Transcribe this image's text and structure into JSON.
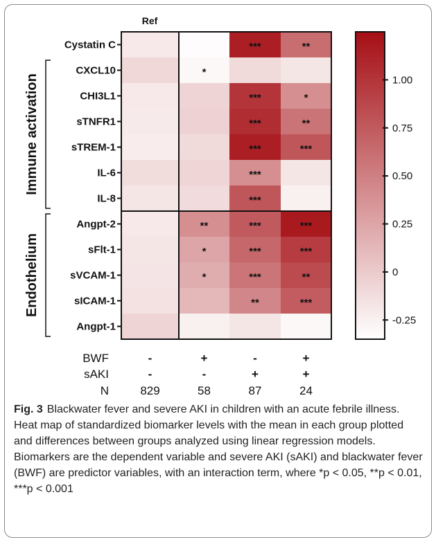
{
  "chart_data": {
    "type": "heatmap",
    "ref_label": "Ref",
    "rows": [
      "Cystatin C",
      "CXCL10",
      "CHI3L1",
      "sTNFR1",
      "sTREM-1",
      "IL-6",
      "IL-8",
      "Angpt-2",
      "sFlt-1",
      "sVCAM-1",
      "sICAM-1",
      "Angpt-1"
    ],
    "row_groups": [
      {
        "name": "Immune activation",
        "rows": [
          "CXCL10",
          "CHI3L1",
          "sTNFR1",
          "sTREM-1",
          "IL-6",
          "IL-8"
        ]
      },
      {
        "name": "Endothelium",
        "rows": [
          "Angpt-2",
          "sFlt-1",
          "sVCAM-1",
          "sICAM-1",
          "Angpt-1"
        ]
      }
    ],
    "columns": [
      {
        "BWF": "-",
        "sAKI": "-",
        "N": "829"
      },
      {
        "BWF": "+",
        "sAKI": "-",
        "N": "58"
      },
      {
        "BWF": "-",
        "sAKI": "+",
        "N": "87"
      },
      {
        "BWF": "+",
        "sAKI": "+",
        "N": "24"
      }
    ],
    "column_factor_labels": {
      "BWF": "BWF",
      "sAKI": "sAKI",
      "N": "N"
    },
    "values": [
      [
        -0.2,
        -0.33,
        1.15,
        0.62
      ],
      [
        -0.08,
        -0.3,
        -0.1,
        -0.18
      ],
      [
        -0.2,
        -0.06,
        1.0,
        0.4
      ],
      [
        -0.21,
        -0.05,
        1.05,
        0.58
      ],
      [
        -0.22,
        -0.1,
        1.15,
        0.78
      ],
      [
        -0.12,
        -0.07,
        0.4,
        -0.18
      ],
      [
        -0.18,
        -0.11,
        0.78,
        -0.25
      ],
      [
        -0.2,
        0.4,
        0.75,
        1.18
      ],
      [
        -0.18,
        0.25,
        0.66,
        0.95
      ],
      [
        -0.17,
        0.2,
        0.57,
        0.85
      ],
      [
        -0.15,
        0.13,
        0.46,
        0.74
      ],
      [
        -0.06,
        -0.25,
        -0.18,
        -0.3
      ]
    ],
    "significance": [
      [
        "",
        "",
        "***",
        "**"
      ],
      [
        "",
        "*",
        "",
        ""
      ],
      [
        "",
        "",
        "***",
        "*"
      ],
      [
        "",
        "",
        "***",
        "**"
      ],
      [
        "",
        "",
        "***",
        "***"
      ],
      [
        "",
        "",
        "***",
        ""
      ],
      [
        "",
        "",
        "***",
        ""
      ],
      [
        "",
        "**",
        "***",
        "***"
      ],
      [
        "",
        "*",
        "***",
        "***"
      ],
      [
        "",
        "*",
        "***",
        "**"
      ],
      [
        "",
        "",
        "**",
        "***"
      ],
      [
        "",
        "",
        "",
        ""
      ]
    ],
    "colorbar": {
      "min": -0.35,
      "max": 1.25,
      "ticks": [
        "1.00",
        "0.75",
        "0.50",
        "0.25",
        "0",
        "-0.25"
      ],
      "low_color": "#ffffff",
      "high_color": "#a50f15"
    }
  },
  "caption": {
    "label": "Fig. 3",
    "text": "Blackwater fever and severe AKI in children with an acute febrile illness. Heat map of standardized biomarker levels with the mean in each group plotted and differences between groups analyzed using linear regression models. Biomarkers are the dependent variable and severe AKI (sAKI) and blackwater fever (BWF) are predictor variables, with an interaction term, where *p < 0.05, **p < 0.01, ***p < 0.001"
  }
}
